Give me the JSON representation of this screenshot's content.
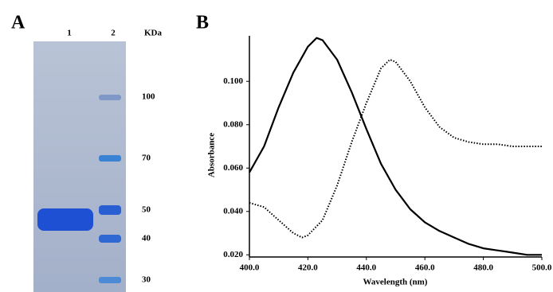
{
  "panel_a": {
    "label": "A",
    "lanes": [
      "1",
      "2"
    ],
    "unit": "KDa",
    "markers": [
      "100",
      "70",
      "50",
      "40",
      "30"
    ]
  },
  "chart_data": {
    "type": "line",
    "panel": "B",
    "xlabel": "Wavelength (nm)",
    "ylabel": "Absorbance",
    "xlim": [
      400,
      500
    ],
    "ylim": [
      0.019,
      0.121
    ],
    "xticks": [
      {
        "value": 400,
        "label": "400.0"
      },
      {
        "value": 420,
        "label": "420.0"
      },
      {
        "value": 440,
        "label": "440.0"
      },
      {
        "value": 460,
        "label": "460.0"
      },
      {
        "value": 480,
        "label": "480.0"
      },
      {
        "value": 500,
        "label": "500.0"
      }
    ],
    "yticks": [
      {
        "value": 0.02,
        "label": "0.020"
      },
      {
        "value": 0.04,
        "label": "0.040"
      },
      {
        "value": 0.06,
        "label": "0.060"
      },
      {
        "value": 0.08,
        "label": "0.080"
      },
      {
        "value": 0.1,
        "label": "0.100"
      }
    ],
    "series": [
      {
        "color": "#000000",
        "style": "solid",
        "x": [
          400,
          405,
          410,
          415,
          420,
          423,
          425,
          430,
          435,
          440,
          445,
          450,
          455,
          460,
          465,
          470,
          475,
          480,
          485,
          490,
          495,
          500
        ],
        "values": [
          0.058,
          0.07,
          0.088,
          0.104,
          0.116,
          0.12,
          0.119,
          0.11,
          0.095,
          0.078,
          0.062,
          0.05,
          0.041,
          0.035,
          0.031,
          0.028,
          0.025,
          0.023,
          0.022,
          0.021,
          0.02,
          0.02
        ]
      },
      {
        "color": "#000000",
        "style": "dotted",
        "x": [
          400,
          405,
          410,
          415,
          418,
          420,
          425,
          430,
          435,
          440,
          445,
          448,
          450,
          455,
          460,
          465,
          470,
          475,
          480,
          485,
          490,
          495,
          500
        ],
        "values": [
          0.044,
          0.042,
          0.036,
          0.03,
          0.028,
          0.029,
          0.036,
          0.052,
          0.072,
          0.09,
          0.106,
          0.11,
          0.109,
          0.1,
          0.088,
          0.079,
          0.074,
          0.072,
          0.071,
          0.071,
          0.07,
          0.07,
          0.07
        ]
      }
    ]
  }
}
